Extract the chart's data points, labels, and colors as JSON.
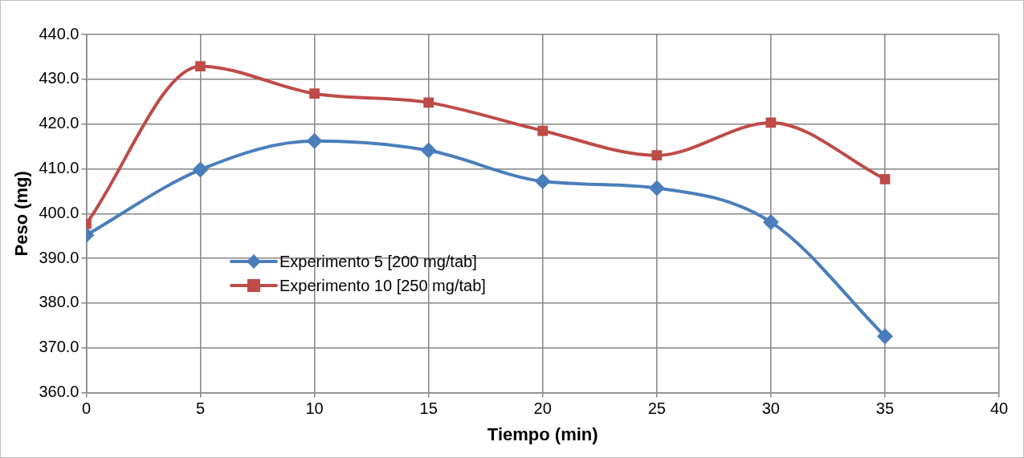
{
  "chart_data": {
    "type": "line",
    "xlabel": "Tiempo (min)",
    "ylabel": "Peso (mg)",
    "x": [
      0,
      5,
      10,
      15,
      20,
      25,
      30,
      35
    ],
    "series": [
      {
        "name": "Experimento 5 [200 mg/tab]",
        "color": "#4a7ebb",
        "marker": "diamond",
        "values": [
          395.2,
          409.8,
          416.2,
          414.1,
          407.2,
          405.7,
          398.1,
          372.6
        ]
      },
      {
        "name": "Experimento 10 [250 mg/tab]",
        "color": "#be4b48",
        "marker": "square",
        "values": [
          397.7,
          432.9,
          426.8,
          424.8,
          418.5,
          413.0,
          420.3,
          407.7
        ]
      }
    ],
    "xlim": [
      0,
      40
    ],
    "xticks": [
      0,
      5,
      10,
      15,
      20,
      25,
      30,
      35,
      40
    ],
    "ylim": [
      360,
      440
    ],
    "yticks": [
      {
        "value": 360,
        "label": "360.0"
      },
      {
        "value": 370,
        "label": "370.0"
      },
      {
        "value": 380,
        "label": "380.0"
      },
      {
        "value": 390,
        "label": "390.0"
      },
      {
        "value": 400,
        "label": "400.0"
      },
      {
        "value": 410,
        "label": "410.0"
      },
      {
        "value": 420,
        "label": "420.0"
      },
      {
        "value": 430,
        "label": "430.0"
      },
      {
        "value": 440,
        "label": "440.0"
      }
    ],
    "grid": true,
    "legend": "left",
    "line_style": "solid"
  }
}
